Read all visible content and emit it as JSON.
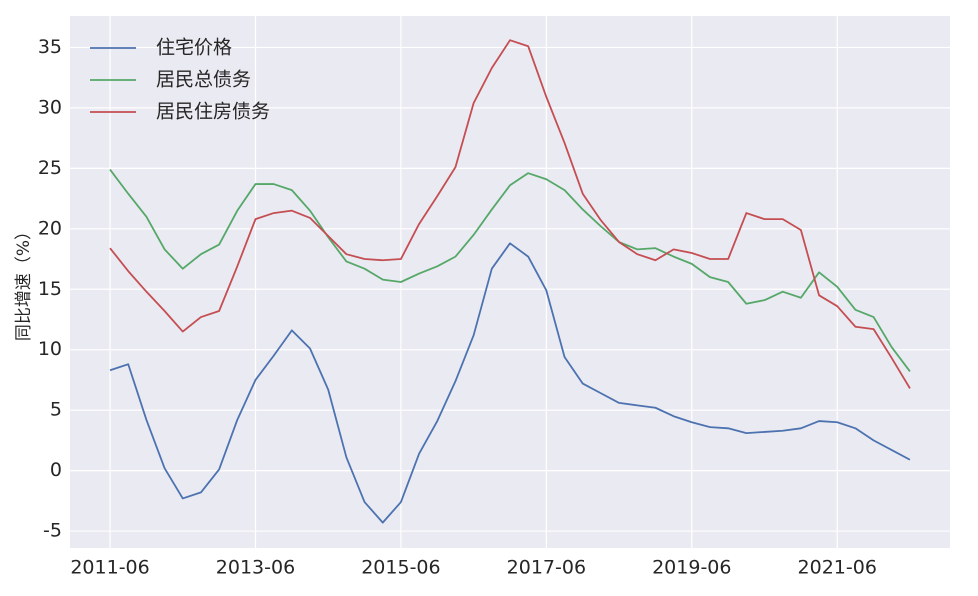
{
  "chart_data": {
    "type": "line",
    "ylabel": "同比增速（%）",
    "x": [
      "2011-06",
      "2011-09",
      "2011-12",
      "2012-03",
      "2012-06",
      "2012-09",
      "2012-12",
      "2013-03",
      "2013-06",
      "2013-09",
      "2013-12",
      "2014-03",
      "2014-06",
      "2014-09",
      "2014-12",
      "2015-03",
      "2015-06",
      "2015-09",
      "2015-12",
      "2016-03",
      "2016-06",
      "2016-09",
      "2016-12",
      "2017-03",
      "2017-06",
      "2017-09",
      "2017-12",
      "2018-03",
      "2018-06",
      "2018-09",
      "2018-12",
      "2019-03",
      "2019-06",
      "2019-09",
      "2019-12",
      "2020-03",
      "2020-06",
      "2020-09",
      "2020-12",
      "2021-03",
      "2021-06",
      "2021-09",
      "2021-12",
      "2022-03",
      "2022-06"
    ],
    "series": [
      {
        "name": "住宅价格",
        "color": "#4c72b0",
        "values": [
          8.3,
          8.8,
          4.2,
          0.2,
          -2.3,
          -1.8,
          0.1,
          4.2,
          7.5,
          9.5,
          11.6,
          10.1,
          6.7,
          1.1,
          -2.6,
          -4.3,
          -2.6,
          1.4,
          4.1,
          7.4,
          11.2,
          16.7,
          18.8,
          17.7,
          14.9,
          9.4,
          7.2,
          6.4,
          5.6,
          5.4,
          5.2,
          4.5,
          4.0,
          3.6,
          3.5,
          3.1,
          3.2,
          3.3,
          3.5,
          4.1,
          4.0,
          3.5,
          2.5,
          1.7,
          0.9
        ]
      },
      {
        "name": "居民总债务",
        "color": "#55a868",
        "values": [
          24.9,
          22.9,
          21.0,
          18.3,
          16.7,
          17.9,
          18.7,
          21.5,
          23.7,
          23.7,
          23.2,
          21.5,
          19.3,
          17.3,
          16.7,
          15.8,
          15.6,
          16.3,
          16.9,
          17.7,
          19.5,
          21.6,
          23.6,
          24.6,
          24.1,
          23.2,
          21.6,
          20.2,
          18.9,
          18.3,
          18.4,
          17.7,
          17.1,
          16.0,
          15.6,
          13.8,
          14.1,
          14.8,
          14.3,
          16.4,
          15.2,
          13.3,
          12.7,
          10.2,
          8.2
        ]
      },
      {
        "name": "居民住房债务",
        "color": "#c44e52",
        "values": [
          18.4,
          16.5,
          14.8,
          13.2,
          11.5,
          12.7,
          13.2,
          16.9,
          20.8,
          21.3,
          21.5,
          20.9,
          19.4,
          17.9,
          17.5,
          17.4,
          17.5,
          20.4,
          22.7,
          25.1,
          30.4,
          33.3,
          35.6,
          35.1,
          30.9,
          27.1,
          22.9,
          20.7,
          18.9,
          17.9,
          17.4,
          18.3,
          18.0,
          17.5,
          17.5,
          21.3,
          20.8,
          20.8,
          19.9,
          14.5,
          13.6,
          11.9,
          11.7,
          9.3,
          6.8
        ]
      }
    ],
    "xticks": [
      "2011-06",
      "2013-06",
      "2015-06",
      "2017-06",
      "2019-06",
      "2021-06"
    ],
    "ylim": [
      -6.4,
      37.6
    ],
    "yticks": [
      -5,
      0,
      5,
      10,
      15,
      20,
      25,
      30,
      35
    ],
    "grid": true,
    "legend": "upper left"
  }
}
